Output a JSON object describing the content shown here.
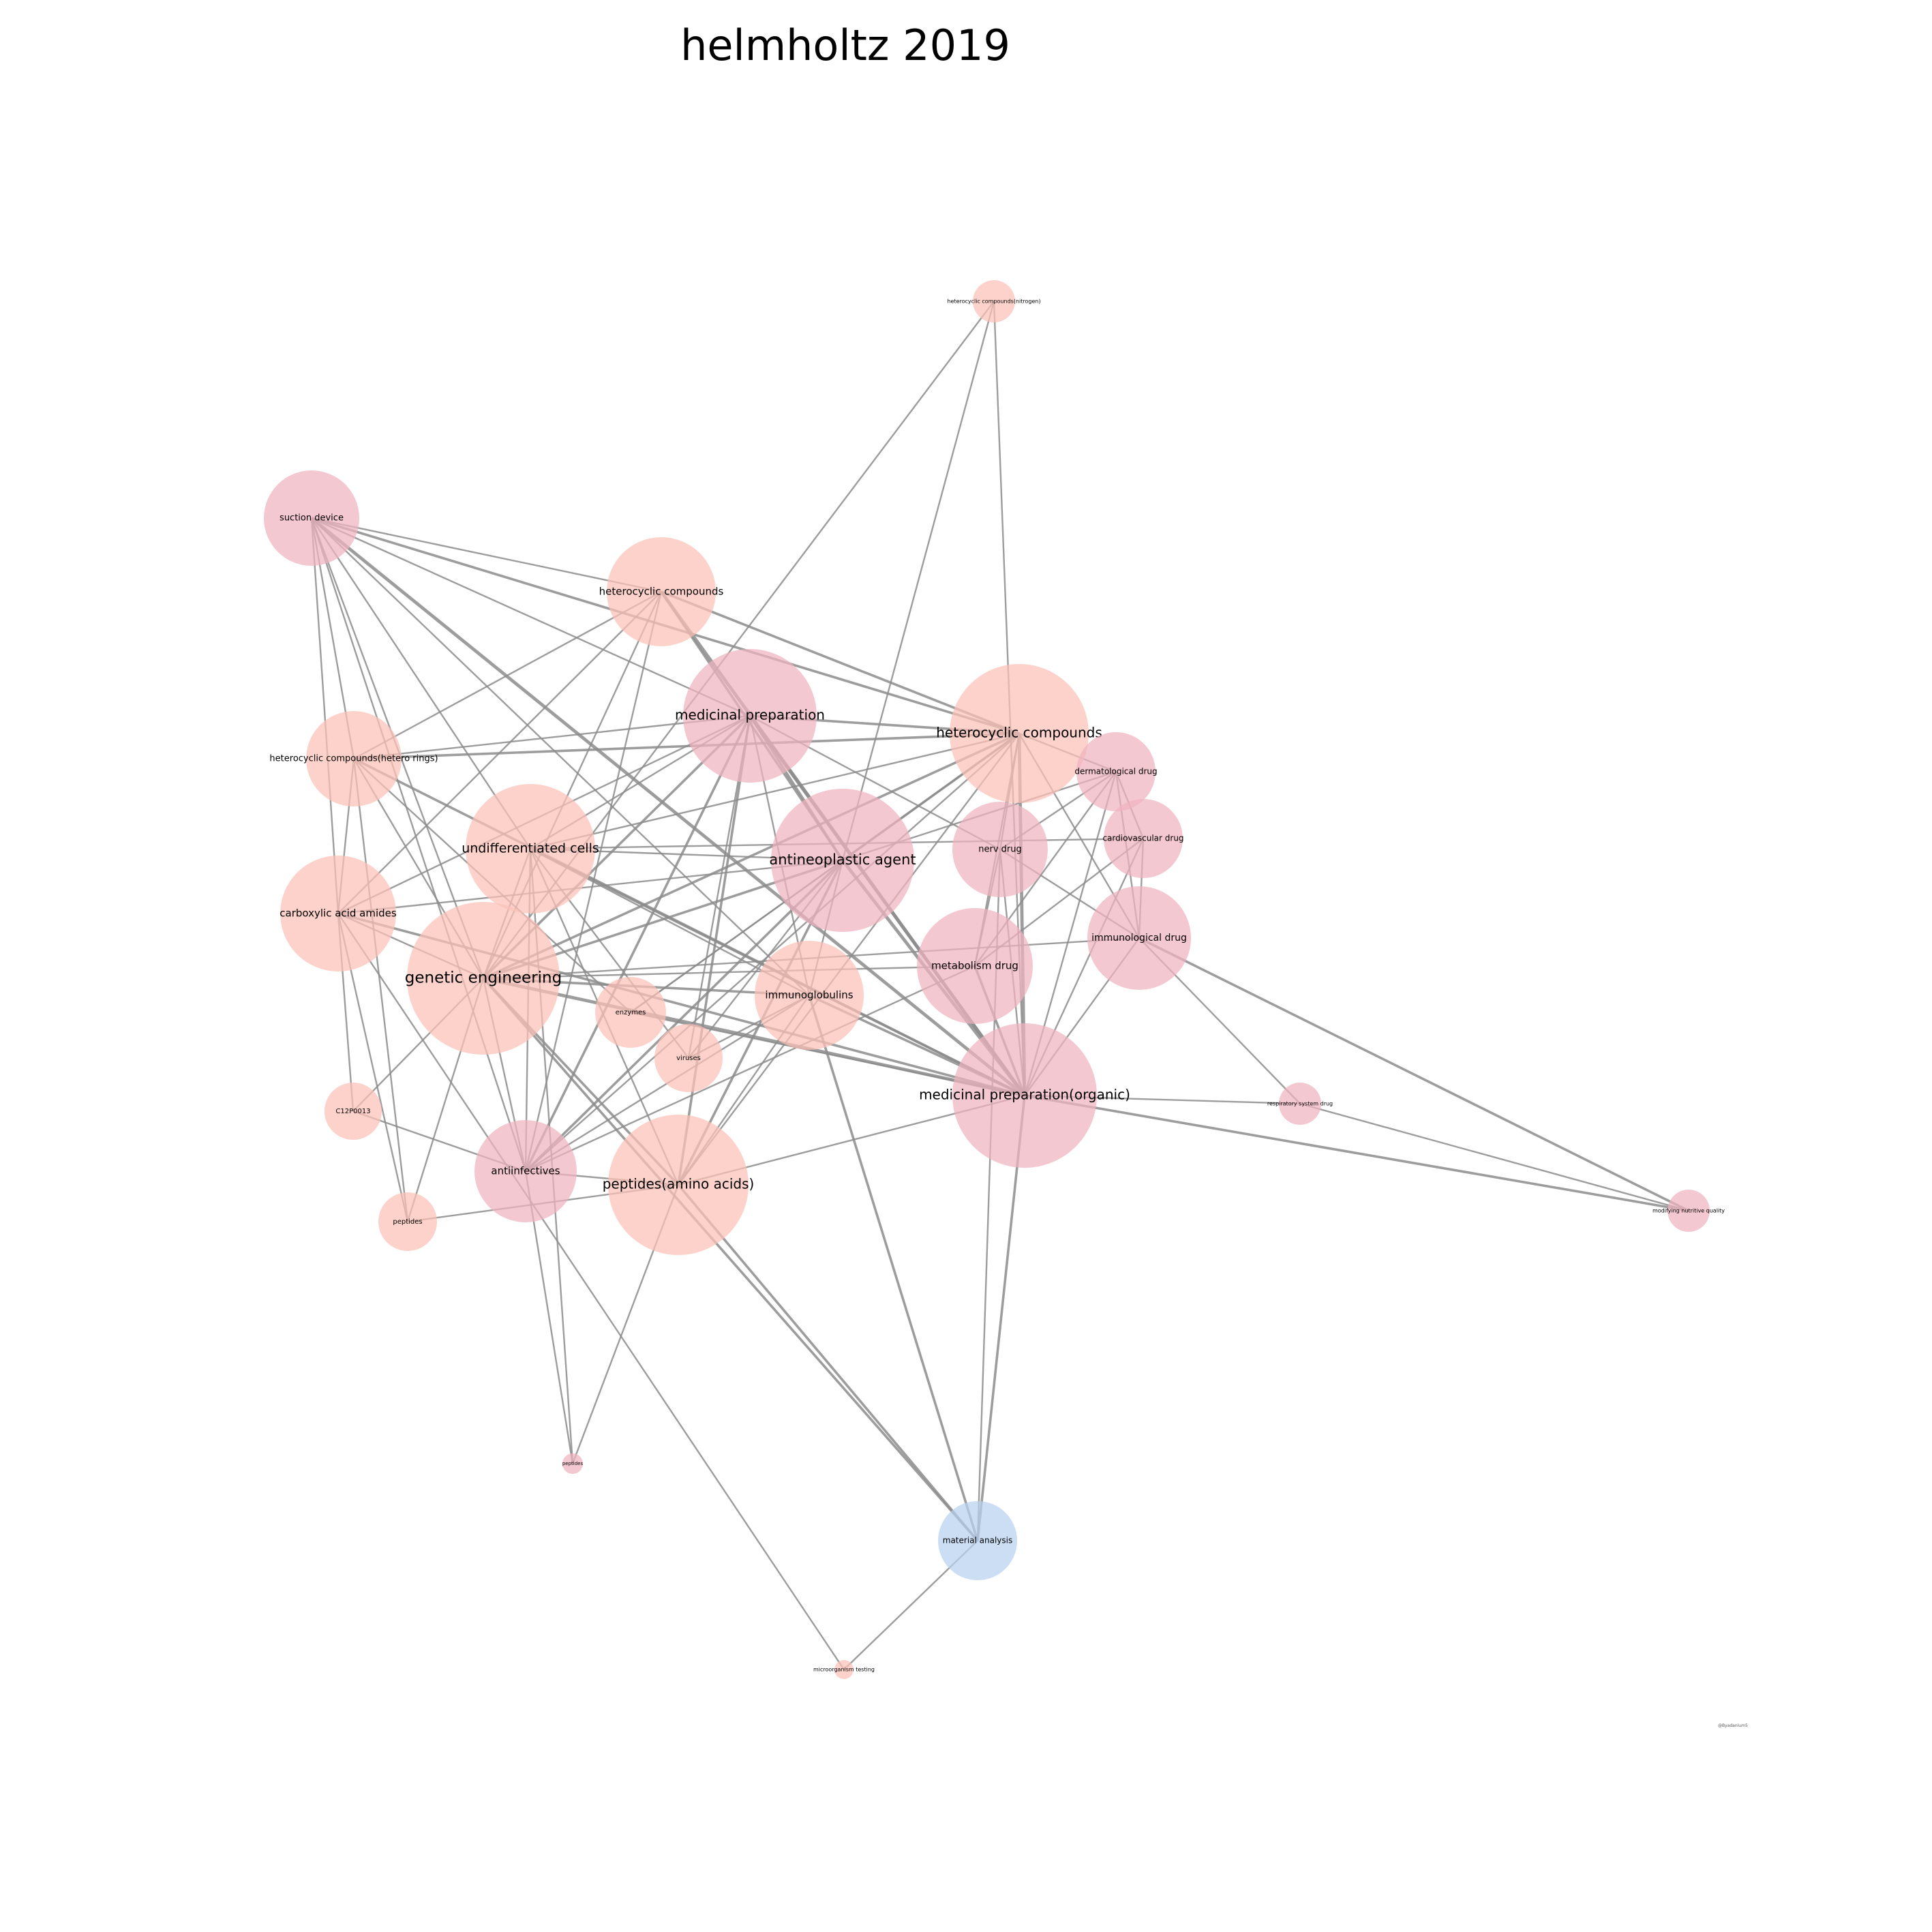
{
  "title": "helmholtz 2019",
  "watermark": "@Byadanium5",
  "colors": {
    "pink": "#f0b3bf",
    "salmon": "#fbc0b7",
    "blue": "#b7d1f0",
    "edge": "#8c8c8c"
  },
  "nodes": [
    {
      "id": "suction-device",
      "label": "suction device",
      "color": "pink",
      "weight": 4
    },
    {
      "id": "heterocyclic-compounds-top",
      "label": "heterocyclic compounds",
      "color": "salmon",
      "weight": 5
    },
    {
      "id": "heterocyclic-compounds-nitrogen",
      "label": "heterocyclic compounds(nitrogen)",
      "color": "salmon",
      "weight": 1
    },
    {
      "id": "medicinal-preparation",
      "label": "medicinal preparation",
      "color": "pink",
      "weight": 7
    },
    {
      "id": "heterocyclic-compounds",
      "label": "heterocyclic compounds",
      "color": "salmon",
      "weight": 8
    },
    {
      "id": "heterocyclic-compounds-hetero-rings",
      "label": "heterocyclic compounds(hetero rings)",
      "color": "salmon",
      "weight": 4
    },
    {
      "id": "dermatological-drug",
      "label": "dermatological drug",
      "color": "pink",
      "weight": 3
    },
    {
      "id": "cardiovascular-drug",
      "label": "cardiovascular drug",
      "color": "pink",
      "weight": 3
    },
    {
      "id": "nerv-drug",
      "label": "nerv drug",
      "color": "pink",
      "weight": 4
    },
    {
      "id": "undifferentiated-cells",
      "label": "undifferentiated cells",
      "color": "salmon",
      "weight": 7
    },
    {
      "id": "antineoplastic-agent",
      "label": "antineoplastic agent",
      "color": "pink",
      "weight": 9
    },
    {
      "id": "carboxylic-acid-amides",
      "label": "carboxylic acid amides",
      "color": "salmon",
      "weight": 5
    },
    {
      "id": "immunological-drug",
      "label": "immunological drug",
      "color": "pink",
      "weight": 4
    },
    {
      "id": "metabolism-drug",
      "label": "metabolism drug",
      "color": "pink",
      "weight": 6
    },
    {
      "id": "genetic-engineering",
      "label": "genetic engineering",
      "color": "salmon",
      "weight": 10
    },
    {
      "id": "immunoglobulins",
      "label": "immunoglobulins",
      "color": "salmon",
      "weight": 6
    },
    {
      "id": "enzymes",
      "label": "enzymes",
      "color": "salmon",
      "weight": 2
    },
    {
      "id": "viruses",
      "label": "viruses",
      "color": "salmon",
      "weight": 2
    },
    {
      "id": "medicinal-preparation-organic",
      "label": "medicinal preparation(organic)",
      "color": "pink",
      "weight": 9
    },
    {
      "id": "c12p0013",
      "label": "C12P0013",
      "color": "salmon",
      "weight": 1
    },
    {
      "id": "respiratory-system-drug",
      "label": "respiratory system drug",
      "color": "pink",
      "weight": 1
    },
    {
      "id": "antiinfectives",
      "label": "antiinfectives",
      "color": "pink",
      "weight": 5
    },
    {
      "id": "peptides-amino-acids",
      "label": "peptides(amino acids)",
      "color": "salmon",
      "weight": 9
    },
    {
      "id": "modifying-nutritive-quality",
      "label": "modifying nutritive quality",
      "color": "pink",
      "weight": 1
    },
    {
      "id": "peptides",
      "label": "peptides",
      "color": "salmon",
      "weight": 1
    },
    {
      "id": "peptides-small",
      "label": "peptides",
      "color": "pink",
      "weight": 1
    },
    {
      "id": "material-analysis",
      "label": "material analysis",
      "color": "blue",
      "weight": 3
    },
    {
      "id": "microorganism-testing",
      "label": "microorganism testing",
      "color": "salmon",
      "weight": 1
    }
  ],
  "edges": [
    [
      "suction-device",
      "heterocyclic-compounds-top",
      1
    ],
    [
      "suction-device",
      "medicinal-preparation",
      1
    ],
    [
      "suction-device",
      "heterocyclic-compounds",
      2
    ],
    [
      "suction-device",
      "heterocyclic-compounds-hetero-rings",
      1
    ],
    [
      "suction-device",
      "carboxylic-acid-amides",
      1
    ],
    [
      "suction-device",
      "genetic-engineering",
      1
    ],
    [
      "suction-device",
      "undifferentiated-cells",
      1
    ],
    [
      "suction-device",
      "immunoglobulins",
      1
    ],
    [
      "suction-device",
      "medicinal-preparation-organic",
      3
    ],
    [
      "suction-device",
      "antiinfectives",
      1
    ],
    [
      "heterocyclic-compounds-top",
      "heterocyclic-compounds",
      2
    ],
    [
      "heterocyclic-compounds-top",
      "carboxylic-acid-amides",
      1
    ],
    [
      "heterocyclic-compounds-top",
      "heterocyclic-compounds-hetero-rings",
      1
    ],
    [
      "heterocyclic-compounds-top",
      "antiinfectives",
      1
    ],
    [
      "heterocyclic-compounds-top",
      "genetic-engineering",
      1
    ],
    [
      "heterocyclic-compounds-top",
      "medicinal-preparation-organic",
      3
    ],
    [
      "heterocyclic-compounds-top",
      "antineoplastic-agent",
      2
    ],
    [
      "heterocyclic-compounds-nitrogen",
      "genetic-engineering",
      1
    ],
    [
      "heterocyclic-compounds-nitrogen",
      "antineoplastic-agent",
      1
    ],
    [
      "heterocyclic-compounds-nitrogen",
      "medicinal-preparation-organic",
      1
    ],
    [
      "medicinal-preparation",
      "heterocyclic-compounds",
      2
    ],
    [
      "medicinal-preparation",
      "heterocyclic-compounds-hetero-rings",
      1
    ],
    [
      "medicinal-preparation",
      "undifferentiated-cells",
      1
    ],
    [
      "medicinal-preparation",
      "antineoplastic-agent",
      2
    ],
    [
      "medicinal-preparation",
      "genetic-engineering",
      2
    ],
    [
      "medicinal-preparation",
      "immunoglobulins",
      1
    ],
    [
      "medicinal-preparation",
      "viruses",
      1
    ],
    [
      "medicinal-preparation",
      "peptides-amino-acids",
      2
    ],
    [
      "medicinal-preparation",
      "antiinfectives",
      2
    ],
    [
      "medicinal-preparation",
      "medicinal-preparation-organic",
      3
    ],
    [
      "medicinal-preparation",
      "nerv-drug",
      1
    ],
    [
      "medicinal-preparation",
      "carboxylic-acid-amides",
      1
    ],
    [
      "heterocyclic-compounds",
      "heterocyclic-compounds-hetero-rings",
      2
    ],
    [
      "heterocyclic-compounds",
      "undifferentiated-cells",
      1
    ],
    [
      "heterocyclic-compounds",
      "genetic-engineering",
      2
    ],
    [
      "heterocyclic-compounds",
      "antineoplastic-agent",
      2
    ],
    [
      "heterocyclic-compounds",
      "medicinal-preparation-organic",
      3
    ],
    [
      "heterocyclic-compounds",
      "immunological-drug",
      1
    ],
    [
      "heterocyclic-compounds",
      "peptides-amino-acids",
      1
    ],
    [
      "heterocyclic-compounds",
      "antiinfectives",
      1
    ],
    [
      "heterocyclic-compounds",
      "metabolism-drug",
      1
    ],
    [
      "heterocyclic-compounds",
      "nerv-drug",
      1
    ],
    [
      "heterocyclic-compounds",
      "enzymes",
      1
    ],
    [
      "heterocyclic-compounds",
      "dermatological-drug",
      1
    ],
    [
      "heterocyclic-compounds-hetero-rings",
      "medicinal-preparation-organic",
      2
    ],
    [
      "heterocyclic-compounds-hetero-rings",
      "genetic-engineering",
      1
    ],
    [
      "heterocyclic-compounds-hetero-rings",
      "carboxylic-acid-amides",
      1
    ],
    [
      "heterocyclic-compounds-hetero-rings",
      "enzymes",
      1
    ],
    [
      "heterocyclic-compounds-hetero-rings",
      "peptides",
      1
    ],
    [
      "dermatological-drug",
      "antineoplastic-agent",
      1
    ],
    [
      "dermatological-drug",
      "metabolism-drug",
      1
    ],
    [
      "dermatological-drug",
      "immunological-drug",
      1
    ],
    [
      "dermatological-drug",
      "medicinal-preparation-organic",
      1
    ],
    [
      "dermatological-drug",
      "nerv-drug",
      1
    ],
    [
      "dermatological-drug",
      "cardiovascular-drug",
      1
    ],
    [
      "cardiovascular-drug",
      "undifferentiated-cells",
      1
    ],
    [
      "cardiovascular-drug",
      "metabolism-drug",
      1
    ],
    [
      "cardiovascular-drug",
      "immunological-drug",
      1
    ],
    [
      "cardiovascular-drug",
      "medicinal-preparation-organic",
      1
    ],
    [
      "nerv-drug",
      "medicinal-preparation-organic",
      1
    ],
    [
      "nerv-drug",
      "immunological-drug",
      1
    ],
    [
      "nerv-drug",
      "metabolism-drug",
      1
    ],
    [
      "nerv-drug",
      "material-analysis",
      1
    ],
    [
      "undifferentiated-cells",
      "antineoplastic-agent",
      1
    ],
    [
      "undifferentiated-cells",
      "genetic-engineering",
      1
    ],
    [
      "undifferentiated-cells",
      "immunoglobulins",
      1
    ],
    [
      "undifferentiated-cells",
      "medicinal-preparation-organic",
      2
    ],
    [
      "undifferentiated-cells",
      "antiinfectives",
      1
    ],
    [
      "undifferentiated-cells",
      "peptides-amino-acids",
      1
    ],
    [
      "undifferentiated-cells",
      "viruses",
      1
    ],
    [
      "undifferentiated-cells",
      "peptides-small",
      1
    ],
    [
      "antineoplastic-agent",
      "genetic-engineering",
      2
    ],
    [
      "antineoplastic-agent",
      "antiinfectives",
      2
    ],
    [
      "antineoplastic-agent",
      "peptides-amino-acids",
      2
    ],
    [
      "antineoplastic-agent",
      "immunoglobulins",
      1
    ],
    [
      "antineoplastic-agent",
      "viruses",
      1
    ],
    [
      "antineoplastic-agent",
      "enzymes",
      1
    ],
    [
      "antineoplastic-agent",
      "medicinal-preparation-organic",
      3
    ],
    [
      "antineoplastic-agent",
      "carboxylic-acid-amides",
      1
    ],
    [
      "carboxylic-acid-amides",
      "genetic-engineering",
      1
    ],
    [
      "carboxylic-acid-amides",
      "medicinal-preparation-organic",
      2
    ],
    [
      "carboxylic-acid-amides",
      "c12p0013",
      1
    ],
    [
      "carboxylic-acid-amides",
      "peptides",
      1
    ],
    [
      "immunological-drug",
      "genetic-engineering",
      1
    ],
    [
      "immunological-drug",
      "medicinal-preparation-organic",
      1
    ],
    [
      "immunological-drug",
      "modifying-nutritive-quality",
      2
    ],
    [
      "immunological-drug",
      "respiratory-system-drug",
      1
    ],
    [
      "metabolism-drug",
      "genetic-engineering",
      1
    ],
    [
      "metabolism-drug",
      "medicinal-preparation-organic",
      2
    ],
    [
      "metabolism-drug",
      "antiinfectives",
      1
    ],
    [
      "genetic-engineering",
      "immunoglobulins",
      2
    ],
    [
      "genetic-engineering",
      "medicinal-preparation-organic",
      3
    ],
    [
      "genetic-engineering",
      "peptides-amino-acids",
      2
    ],
    [
      "genetic-engineering",
      "antiinfectives",
      1
    ],
    [
      "genetic-engineering",
      "material-analysis",
      2
    ],
    [
      "genetic-engineering",
      "c12p0013",
      1
    ],
    [
      "genetic-engineering",
      "peptides",
      1
    ],
    [
      "immunoglobulins",
      "peptides-amino-acids",
      1
    ],
    [
      "immunoglobulins",
      "medicinal-preparation-organic",
      2
    ],
    [
      "immunoglobulins",
      "material-analysis",
      2
    ],
    [
      "immunoglobulins",
      "antiinfectives",
      1
    ],
    [
      "immunoglobulins",
      "viruses",
      1
    ],
    [
      "enzymes",
      "medicinal-preparation-organic",
      1
    ],
    [
      "medicinal-preparation-organic",
      "peptides-amino-acids",
      1
    ],
    [
      "medicinal-preparation-organic",
      "respiratory-system-drug",
      1
    ],
    [
      "medicinal-preparation-organic",
      "modifying-nutritive-quality",
      2
    ],
    [
      "medicinal-preparation-organic",
      "material-analysis",
      2
    ],
    [
      "respiratory-system-drug",
      "modifying-nutritive-quality",
      1
    ],
    [
      "antiinfectives",
      "peptides-amino-acids",
      1
    ],
    [
      "antiinfectives",
      "peptides-small",
      1
    ],
    [
      "antiinfectives",
      "c12p0013",
      1
    ],
    [
      "peptides-amino-acids",
      "peptides",
      1
    ],
    [
      "peptides-amino-acids",
      "material-analysis",
      2
    ],
    [
      "peptides-amino-acids",
      "peptides-small",
      1
    ],
    [
      "material-analysis",
      "microorganism-testing",
      1
    ],
    [
      "carboxylic-acid-amides",
      "microorganism-testing",
      1
    ]
  ]
}
